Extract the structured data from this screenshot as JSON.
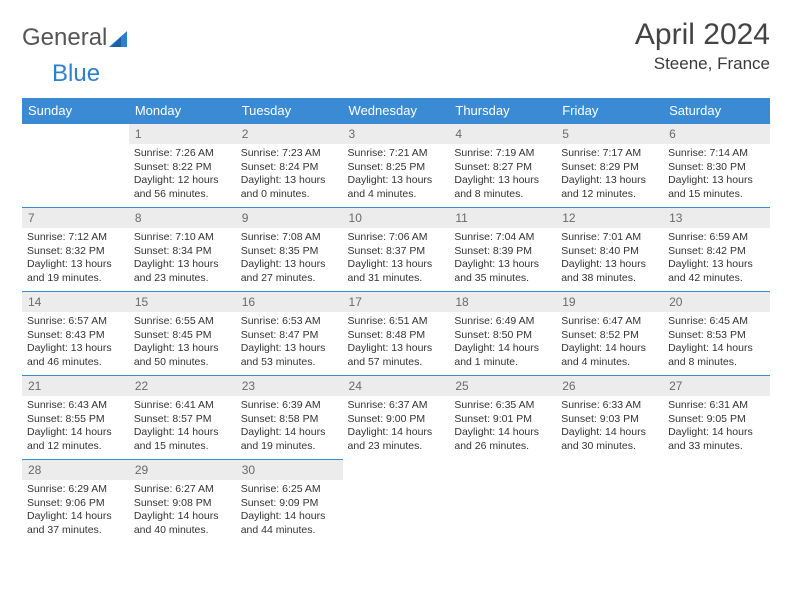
{
  "logo": {
    "text1": "General",
    "text2": "Blue"
  },
  "title": {
    "month": "April 2024",
    "location": "Steene, France"
  },
  "colors": {
    "header_bg": "#3b8bd4",
    "header_fg": "#ffffff",
    "daynum_bg": "#ececec",
    "daynum_fg": "#6a6a6a",
    "border": "#3b8bd4",
    "logo_accent": "#2f7fcf"
  },
  "weekdays": [
    "Sunday",
    "Monday",
    "Tuesday",
    "Wednesday",
    "Thursday",
    "Friday",
    "Saturday"
  ],
  "weeks": [
    [
      {
        "blank": true
      },
      {
        "day": "1",
        "sunrise": "Sunrise: 7:26 AM",
        "sunset": "Sunset: 8:22 PM",
        "daylight1": "Daylight: 12 hours",
        "daylight2": "and 56 minutes."
      },
      {
        "day": "2",
        "sunrise": "Sunrise: 7:23 AM",
        "sunset": "Sunset: 8:24 PM",
        "daylight1": "Daylight: 13 hours",
        "daylight2": "and 0 minutes."
      },
      {
        "day": "3",
        "sunrise": "Sunrise: 7:21 AM",
        "sunset": "Sunset: 8:25 PM",
        "daylight1": "Daylight: 13 hours",
        "daylight2": "and 4 minutes."
      },
      {
        "day": "4",
        "sunrise": "Sunrise: 7:19 AM",
        "sunset": "Sunset: 8:27 PM",
        "daylight1": "Daylight: 13 hours",
        "daylight2": "and 8 minutes."
      },
      {
        "day": "5",
        "sunrise": "Sunrise: 7:17 AM",
        "sunset": "Sunset: 8:29 PM",
        "daylight1": "Daylight: 13 hours",
        "daylight2": "and 12 minutes."
      },
      {
        "day": "6",
        "sunrise": "Sunrise: 7:14 AM",
        "sunset": "Sunset: 8:30 PM",
        "daylight1": "Daylight: 13 hours",
        "daylight2": "and 15 minutes."
      }
    ],
    [
      {
        "day": "7",
        "sunrise": "Sunrise: 7:12 AM",
        "sunset": "Sunset: 8:32 PM",
        "daylight1": "Daylight: 13 hours",
        "daylight2": "and 19 minutes."
      },
      {
        "day": "8",
        "sunrise": "Sunrise: 7:10 AM",
        "sunset": "Sunset: 8:34 PM",
        "daylight1": "Daylight: 13 hours",
        "daylight2": "and 23 minutes."
      },
      {
        "day": "9",
        "sunrise": "Sunrise: 7:08 AM",
        "sunset": "Sunset: 8:35 PM",
        "daylight1": "Daylight: 13 hours",
        "daylight2": "and 27 minutes."
      },
      {
        "day": "10",
        "sunrise": "Sunrise: 7:06 AM",
        "sunset": "Sunset: 8:37 PM",
        "daylight1": "Daylight: 13 hours",
        "daylight2": "and 31 minutes."
      },
      {
        "day": "11",
        "sunrise": "Sunrise: 7:04 AM",
        "sunset": "Sunset: 8:39 PM",
        "daylight1": "Daylight: 13 hours",
        "daylight2": "and 35 minutes."
      },
      {
        "day": "12",
        "sunrise": "Sunrise: 7:01 AM",
        "sunset": "Sunset: 8:40 PM",
        "daylight1": "Daylight: 13 hours",
        "daylight2": "and 38 minutes."
      },
      {
        "day": "13",
        "sunrise": "Sunrise: 6:59 AM",
        "sunset": "Sunset: 8:42 PM",
        "daylight1": "Daylight: 13 hours",
        "daylight2": "and 42 minutes."
      }
    ],
    [
      {
        "day": "14",
        "sunrise": "Sunrise: 6:57 AM",
        "sunset": "Sunset: 8:43 PM",
        "daylight1": "Daylight: 13 hours",
        "daylight2": "and 46 minutes."
      },
      {
        "day": "15",
        "sunrise": "Sunrise: 6:55 AM",
        "sunset": "Sunset: 8:45 PM",
        "daylight1": "Daylight: 13 hours",
        "daylight2": "and 50 minutes."
      },
      {
        "day": "16",
        "sunrise": "Sunrise: 6:53 AM",
        "sunset": "Sunset: 8:47 PM",
        "daylight1": "Daylight: 13 hours",
        "daylight2": "and 53 minutes."
      },
      {
        "day": "17",
        "sunrise": "Sunrise: 6:51 AM",
        "sunset": "Sunset: 8:48 PM",
        "daylight1": "Daylight: 13 hours",
        "daylight2": "and 57 minutes."
      },
      {
        "day": "18",
        "sunrise": "Sunrise: 6:49 AM",
        "sunset": "Sunset: 8:50 PM",
        "daylight1": "Daylight: 14 hours",
        "daylight2": "and 1 minute."
      },
      {
        "day": "19",
        "sunrise": "Sunrise: 6:47 AM",
        "sunset": "Sunset: 8:52 PM",
        "daylight1": "Daylight: 14 hours",
        "daylight2": "and 4 minutes."
      },
      {
        "day": "20",
        "sunrise": "Sunrise: 6:45 AM",
        "sunset": "Sunset: 8:53 PM",
        "daylight1": "Daylight: 14 hours",
        "daylight2": "and 8 minutes."
      }
    ],
    [
      {
        "day": "21",
        "sunrise": "Sunrise: 6:43 AM",
        "sunset": "Sunset: 8:55 PM",
        "daylight1": "Daylight: 14 hours",
        "daylight2": "and 12 minutes."
      },
      {
        "day": "22",
        "sunrise": "Sunrise: 6:41 AM",
        "sunset": "Sunset: 8:57 PM",
        "daylight1": "Daylight: 14 hours",
        "daylight2": "and 15 minutes."
      },
      {
        "day": "23",
        "sunrise": "Sunrise: 6:39 AM",
        "sunset": "Sunset: 8:58 PM",
        "daylight1": "Daylight: 14 hours",
        "daylight2": "and 19 minutes."
      },
      {
        "day": "24",
        "sunrise": "Sunrise: 6:37 AM",
        "sunset": "Sunset: 9:00 PM",
        "daylight1": "Daylight: 14 hours",
        "daylight2": "and 23 minutes."
      },
      {
        "day": "25",
        "sunrise": "Sunrise: 6:35 AM",
        "sunset": "Sunset: 9:01 PM",
        "daylight1": "Daylight: 14 hours",
        "daylight2": "and 26 minutes."
      },
      {
        "day": "26",
        "sunrise": "Sunrise: 6:33 AM",
        "sunset": "Sunset: 9:03 PM",
        "daylight1": "Daylight: 14 hours",
        "daylight2": "and 30 minutes."
      },
      {
        "day": "27",
        "sunrise": "Sunrise: 6:31 AM",
        "sunset": "Sunset: 9:05 PM",
        "daylight1": "Daylight: 14 hours",
        "daylight2": "and 33 minutes."
      }
    ],
    [
      {
        "day": "28",
        "sunrise": "Sunrise: 6:29 AM",
        "sunset": "Sunset: 9:06 PM",
        "daylight1": "Daylight: 14 hours",
        "daylight2": "and 37 minutes."
      },
      {
        "day": "29",
        "sunrise": "Sunrise: 6:27 AM",
        "sunset": "Sunset: 9:08 PM",
        "daylight1": "Daylight: 14 hours",
        "daylight2": "and 40 minutes."
      },
      {
        "day": "30",
        "sunrise": "Sunrise: 6:25 AM",
        "sunset": "Sunset: 9:09 PM",
        "daylight1": "Daylight: 14 hours",
        "daylight2": "and 44 minutes."
      },
      {
        "blank": true
      },
      {
        "blank": true
      },
      {
        "blank": true
      },
      {
        "blank": true
      }
    ]
  ]
}
